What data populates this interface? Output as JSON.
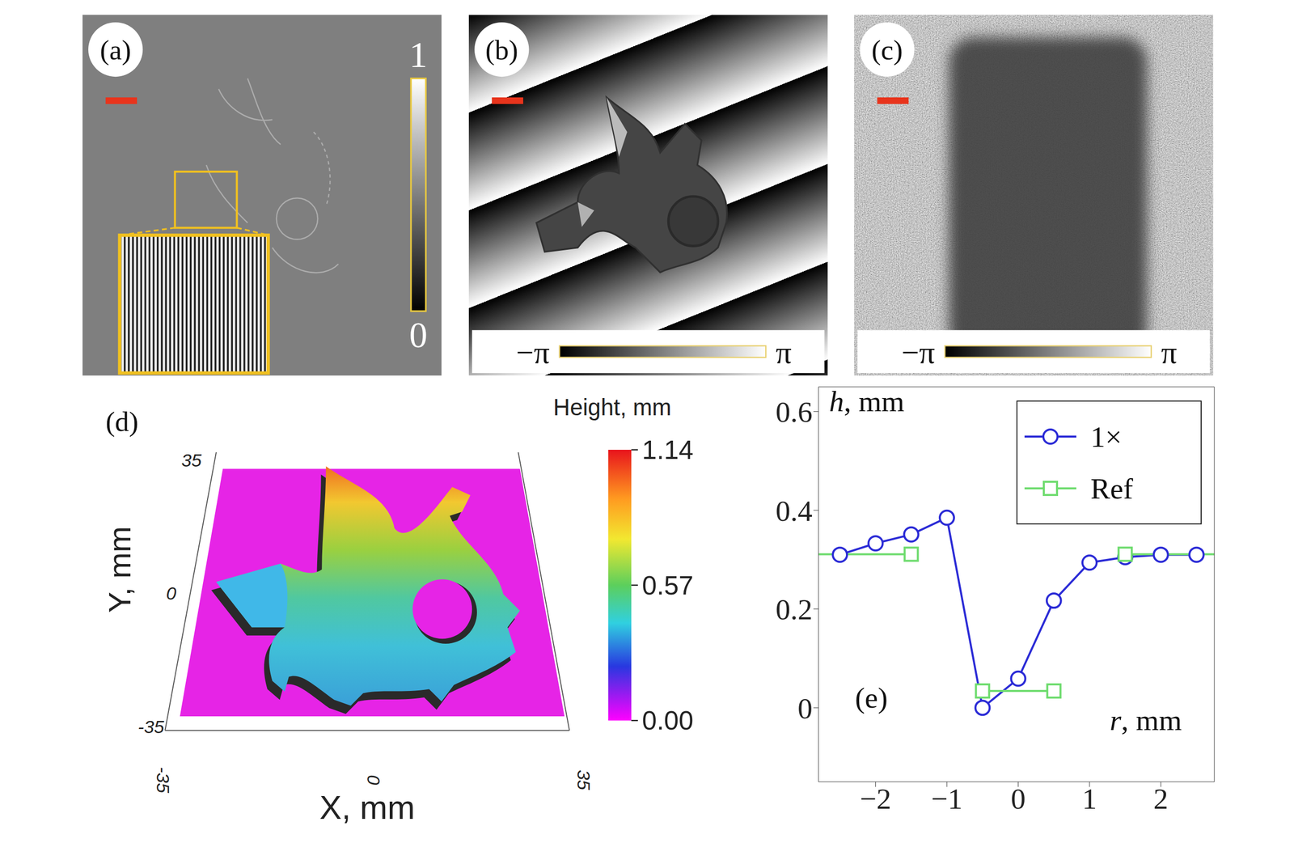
{
  "panels": [
    {
      "label": "(a)",
      "colorbar": {
        "range": [
          0,
          1
        ],
        "ticks": [
          0,
          1
        ]
      }
    },
    {
      "label": "(b)",
      "colorbar": {
        "range": [
          -3.1416,
          3.1416
        ],
        "ticks": [
          {
            "value": -3.1416,
            "label": "−π"
          },
          {
            "value": 3.1416,
            "label": "π"
          }
        ]
      }
    },
    {
      "label": "(c)",
      "colorbar": {
        "range": [
          -3.1416,
          3.1416
        ],
        "ticks": [
          {
            "value": -3.1416,
            "label": "−π"
          },
          {
            "value": 3.1416,
            "label": "π"
          }
        ]
      }
    },
    {
      "label": "(d)",
      "x_label": "X, mm",
      "y_label": "Y, mm",
      "xlim": [
        -35,
        35
      ],
      "ylim": [
        -35,
        35
      ],
      "xticks": [
        -35,
        0,
        35
      ],
      "yticks": [
        -35,
        0,
        35
      ],
      "colorbar": {
        "title": "Height, mm",
        "range": [
          0,
          1.14
        ],
        "ticks": [
          {
            "value": 0,
            "label": "0.00"
          },
          0.57,
          1.14
        ]
      }
    }
  ],
  "chart_data": {
    "type": "line",
    "annotation": "(e)",
    "x_label": "r, mm",
    "y_label": "h, mm",
    "xlim": [
      -2.8,
      2.75
    ],
    "ylim": [
      -0.15,
      0.65
    ],
    "xticks": [
      {
        "value": -2,
        "label": "−2"
      },
      {
        "value": -1,
        "label": "−1"
      },
      0,
      1,
      2
    ],
    "yticks": [
      0,
      0.2,
      0.4,
      0.6
    ],
    "grid": false,
    "legend": "upper right",
    "series": [
      {
        "name": "1×",
        "color": "#2b2bd6",
        "marker": "circle",
        "x": [
          -2.5,
          -2,
          -1.5,
          -1,
          -0.5,
          0,
          0.5,
          1,
          1.5,
          2,
          2.5
        ],
        "values": [
          0.31,
          0.333,
          0.351,
          0.385,
          0,
          0.059,
          0.217,
          0.294,
          0.305,
          0.31,
          0.31
        ]
      },
      {
        "name": "Ref",
        "color": "#6fdc6f",
        "marker": "square",
        "x": [
          -3,
          -1.5,
          -1,
          -0.5,
          0.5,
          1,
          1.5,
          3
        ],
        "values": [
          0.311,
          0.311,
          null,
          0.034,
          0.034,
          null,
          0.311,
          0.311
        ]
      }
    ]
  }
}
